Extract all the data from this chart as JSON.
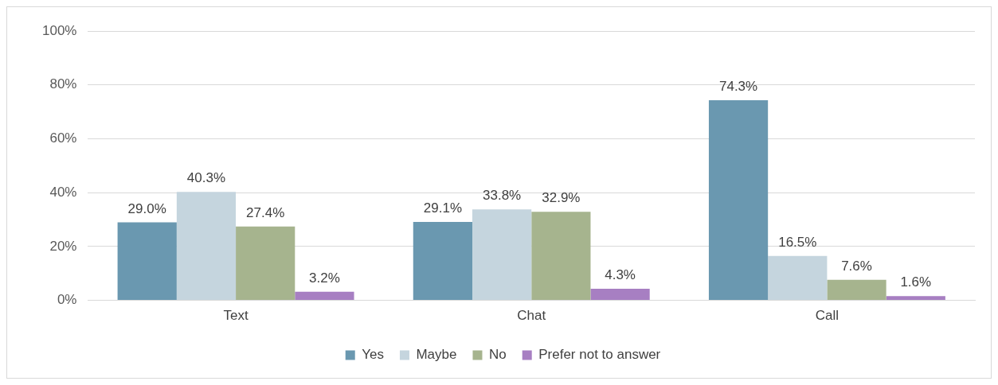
{
  "chart_data": {
    "type": "bar",
    "categories": [
      "Text",
      "Chat",
      "Call"
    ],
    "series": [
      {
        "name": "Yes",
        "color": "#6a98b0",
        "values": [
          29.0,
          29.1,
          74.3
        ],
        "value_labels": [
          "29.0%",
          "29.1%",
          "74.3%"
        ]
      },
      {
        "name": "Maybe",
        "color": "#c5d5de",
        "values": [
          40.3,
          33.8,
          16.5
        ],
        "value_labels": [
          "40.3%",
          "33.8%",
          "16.5%"
        ]
      },
      {
        "name": "No",
        "color": "#a6b48e",
        "values": [
          27.4,
          32.9,
          7.6
        ],
        "value_labels": [
          "27.4%",
          "32.9%",
          "7.6%"
        ]
      },
      {
        "name": "Prefer not to answer",
        "color": "#a77fc2",
        "values": [
          3.2,
          4.3,
          1.6
        ],
        "value_labels": [
          "3.2%",
          "4.3%",
          "1.6%"
        ]
      }
    ],
    "ylim": [
      0,
      100
    ],
    "yticks": [
      {
        "value": 0,
        "label": "0%"
      },
      {
        "value": 20,
        "label": "20%"
      },
      {
        "value": 40,
        "label": "40%"
      },
      {
        "value": 60,
        "label": "60%"
      },
      {
        "value": 80,
        "label": "80%"
      },
      {
        "value": 100,
        "label": "100%"
      }
    ],
    "grid": "y",
    "legend": "bottom"
  }
}
